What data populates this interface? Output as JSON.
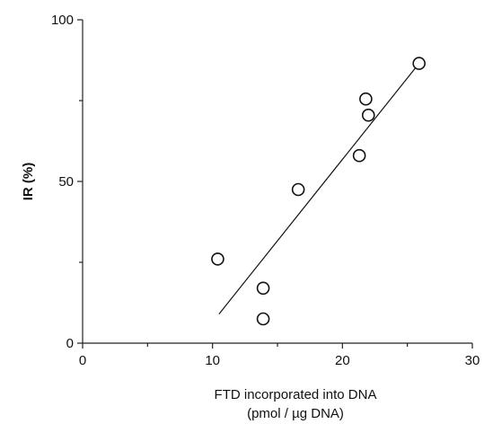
{
  "chart_data": {
    "type": "scatter",
    "xlabel": "FTD incorporated into DNA",
    "xlabel_unit": "(pmol / µg DNA)",
    "ylabel": "IR (%)",
    "xlim": [
      0,
      30
    ],
    "ylim": [
      0,
      100
    ],
    "x_major_ticks": [
      0,
      10,
      20,
      30
    ],
    "x_minor_ticks": [
      5,
      15,
      25
    ],
    "y_major_ticks": [
      0,
      50,
      100
    ],
    "y_minor_ticks": [
      25,
      75
    ],
    "x_tick_labels": [
      "0",
      "10",
      "20",
      "30"
    ],
    "y_tick_labels": [
      "0",
      "50",
      "100"
    ],
    "grid": false,
    "points": [
      {
        "x": 10.4,
        "y": 26
      },
      {
        "x": 13.9,
        "y": 17
      },
      {
        "x": 13.9,
        "y": 7.5
      },
      {
        "x": 16.6,
        "y": 47.5
      },
      {
        "x": 21.3,
        "y": 58
      },
      {
        "x": 21.8,
        "y": 75.5
      },
      {
        "x": 22.0,
        "y": 70.5
      },
      {
        "x": 25.9,
        "y": 86.5
      }
    ],
    "fit_line": {
      "x": [
        10.5,
        25.8
      ],
      "y": [
        9,
        86
      ]
    },
    "marker_color": "#111111",
    "marker_fill": "#ffffff"
  }
}
